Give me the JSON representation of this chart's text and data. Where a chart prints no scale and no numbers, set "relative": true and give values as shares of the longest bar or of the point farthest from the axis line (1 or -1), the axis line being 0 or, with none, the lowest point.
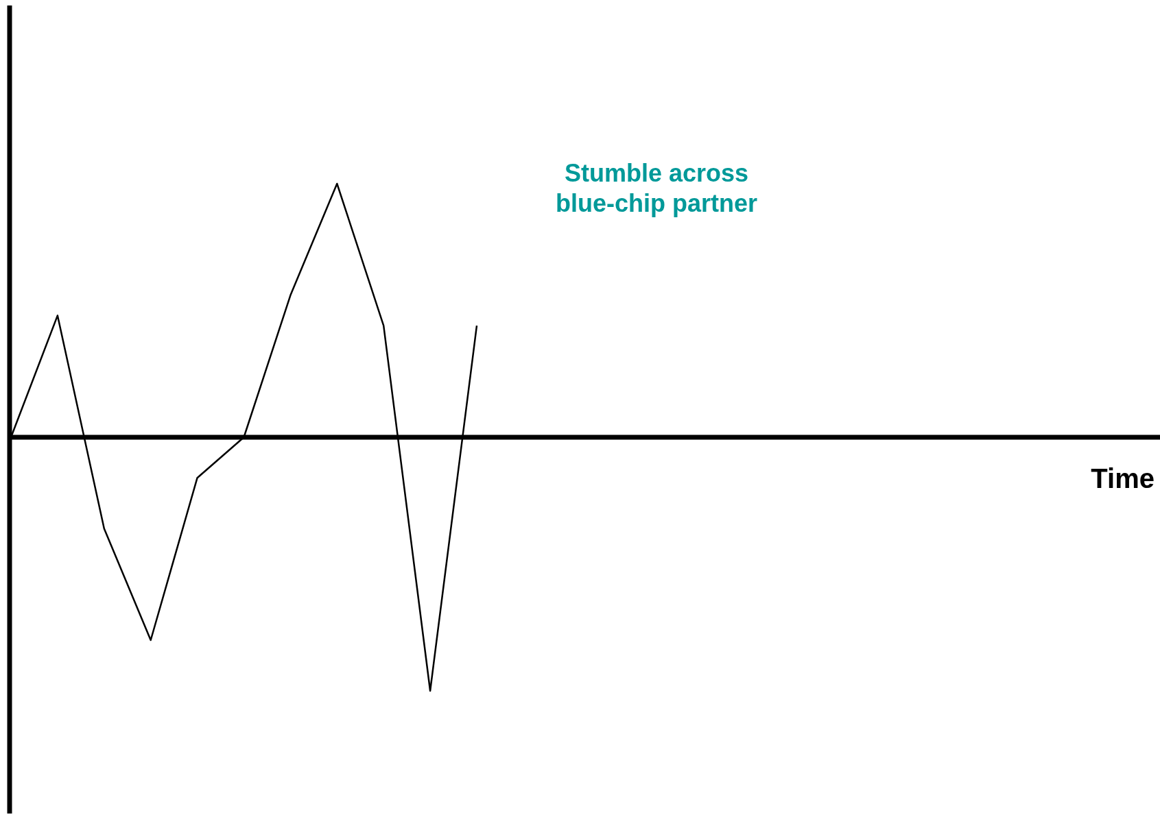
{
  "chart_data": {
    "type": "line",
    "relative": true,
    "categories": [
      null,
      null,
      null,
      null,
      null,
      null,
      null,
      null,
      null,
      null,
      null
    ],
    "series": [
      {
        "color": "#000000",
        "values": [
          0,
          0.48,
          -0.36,
          -0.8,
          -0.16,
          0,
          0.56,
          1,
          0.44,
          -1,
          0.44
        ]
      }
    ],
    "annotations": [
      "Stumble across\nblue-chip partner",
      "Time"
    ],
    "marker": "none",
    "line_style": "solid"
  }
}
